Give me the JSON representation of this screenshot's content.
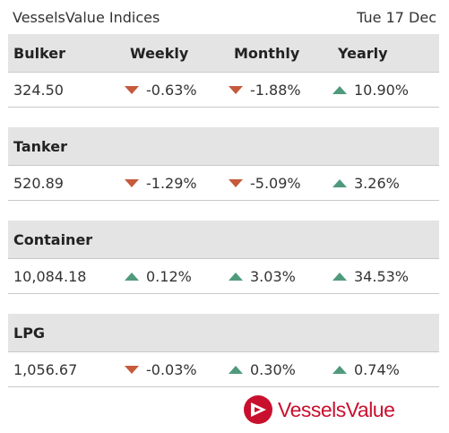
{
  "header": {
    "title": "VesselsValue Indices",
    "date": "Tue 17 Dec"
  },
  "columns": {
    "weekly": "Weekly",
    "monthly": "Monthly",
    "yearly": "Yearly"
  },
  "indices": [
    {
      "name": "Bulker",
      "value": "324.50",
      "weekly": {
        "text": "-0.63%",
        "dir": "down"
      },
      "monthly": {
        "text": "-1.88%",
        "dir": "down"
      },
      "yearly": {
        "text": "10.90%",
        "dir": "up"
      }
    },
    {
      "name": "Tanker",
      "value": "520.89",
      "weekly": {
        "text": "-1.29%",
        "dir": "down"
      },
      "monthly": {
        "text": "-5.09%",
        "dir": "down"
      },
      "yearly": {
        "text": "3.26%",
        "dir": "up"
      }
    },
    {
      "name": "Container",
      "value": "10,084.18",
      "weekly": {
        "text": "0.12%",
        "dir": "up"
      },
      "monthly": {
        "text": "3.03%",
        "dir": "up"
      },
      "yearly": {
        "text": "34.53%",
        "dir": "up"
      }
    },
    {
      "name": "LPG",
      "value": "1,056.67",
      "weekly": {
        "text": "-0.03%",
        "dir": "down"
      },
      "monthly": {
        "text": "0.30%",
        "dir": "up"
      },
      "yearly": {
        "text": "0.74%",
        "dir": "up"
      }
    }
  ],
  "brand": {
    "name": "VesselsValue",
    "logo_icon": "vesselsvalue-logo-icon"
  },
  "colors": {
    "down": "#c65a3c",
    "up": "#4f9a7c",
    "brand": "#c8102e",
    "header_bg": "#e4e4e4"
  }
}
